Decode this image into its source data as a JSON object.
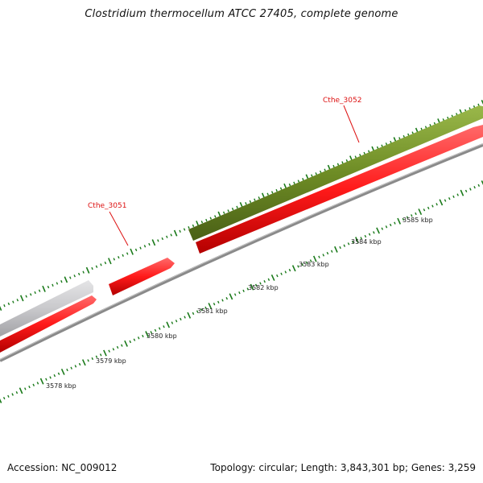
{
  "title": "Clostridium thermocellum ATCC 27405, complete genome",
  "footer": {
    "accession": "Accession: NC_009012",
    "summary": "Topology: circular; Length: 3,843,301 bp; Genes: 3,259"
  },
  "gene_labels": [
    {
      "name": "Cthe_3051",
      "color": "#dd1111"
    },
    {
      "name": "Cthe_3052",
      "color": "#dd1111"
    }
  ],
  "kbp_labels": [
    "3578 kbp",
    "3579 kbp",
    "3580 kbp",
    "3581 kbp",
    "3582 kbp",
    "3583 kbp",
    "3584 kbp",
    "3585 kbp"
  ],
  "colors": {
    "cds_red": "#ff1a1a",
    "gene_grey": "#c9c9cc",
    "gene_green": "#6e8c25",
    "backbone": "#8a8a8a",
    "tick_green": "#1a7a1a",
    "label_red": "#dd1111"
  }
}
